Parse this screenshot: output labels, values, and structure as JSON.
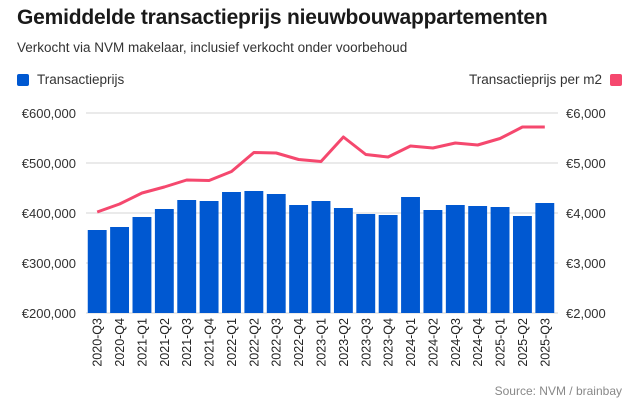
{
  "header": {
    "title": "Gemiddelde transactieprijs nieuwbouwappartementen",
    "subtitle": "Verkocht via NVM makelaar, inclusief verkocht onder voorbehoud"
  },
  "legend": {
    "left_label": "Transactieprijs",
    "right_label": "Transactieprijs per m2"
  },
  "colors": {
    "bar": "#0058d1",
    "line": "#f5486e",
    "grid": "#e3e3e3"
  },
  "source": "Source: NVM / brainbay",
  "chart_data": {
    "type": "bar+line",
    "title": "Gemiddelde transactieprijs nieuwbouwappartementen",
    "subtitle": "Verkocht via NVM makelaar, inclusief verkocht onder voorbehoud",
    "categories": [
      "2020-Q3",
      "2020-Q4",
      "2021-Q1",
      "2021-Q2",
      "2021-Q3",
      "2021-Q4",
      "2022-Q1",
      "2022-Q2",
      "2022-Q3",
      "2022-Q4",
      "2023-Q1",
      "2023-Q2",
      "2023-Q3",
      "2023-Q4",
      "2024-Q1",
      "2024-Q2",
      "2024-Q3",
      "2024-Q4",
      "2025-Q1",
      "2025-Q2",
      "2025-Q3"
    ],
    "series": [
      {
        "name": "Transactieprijs",
        "type": "bar",
        "axis": "left",
        "values": [
          366000,
          372000,
          392000,
          408000,
          426000,
          424000,
          442000,
          444000,
          438000,
          416000,
          424000,
          410000,
          398000,
          396000,
          432000,
          406000,
          416000,
          414000,
          412000,
          394000,
          420000
        ]
      },
      {
        "name": "Transactieprijs per m2",
        "type": "line",
        "axis": "right",
        "values": [
          4020,
          4180,
          4400,
          4520,
          4660,
          4650,
          4830,
          5210,
          5200,
          5070,
          5030,
          5520,
          5170,
          5120,
          5340,
          5300,
          5400,
          5360,
          5490,
          5720,
          5720
        ]
      }
    ],
    "left_axis": {
      "ylim": [
        200000,
        600000
      ],
      "ticks": [
        200000,
        300000,
        400000,
        500000,
        600000
      ],
      "tick_labels": [
        "€200,000",
        "€300,000",
        "€400,000",
        "€500,000",
        "€600,000"
      ]
    },
    "right_axis": {
      "ylim": [
        2000,
        6000
      ],
      "ticks": [
        2000,
        3000,
        4000,
        5000,
        6000
      ],
      "tick_labels": [
        "€2,000",
        "€3,000",
        "€4,000",
        "€5,000",
        "€6,000"
      ]
    },
    "xlabel": "",
    "ylabel": "",
    "grid": true,
    "legend": [
      "top-left: Transactieprijs",
      "top-right: Transactieprijs per m2"
    ],
    "source": "Source: NVM / brainbay"
  }
}
